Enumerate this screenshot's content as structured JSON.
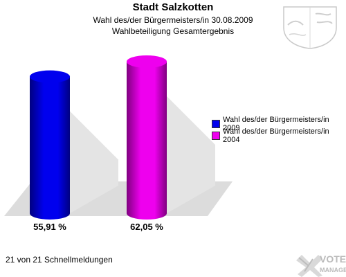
{
  "header": {
    "title": "Stadt Salzkotten",
    "subtitle_line1": "Wahl des/der Bürgermeisters/in 30.08.2009",
    "subtitle_line2": "Wahlbeteiligung Gesamtergebnis"
  },
  "chart_data": {
    "type": "bar",
    "categories": [
      "Wahl des/der Bürgermeisters/in 2009",
      "Wahl des/der Bürgermeisters/in  2004"
    ],
    "values": [
      55.91,
      62.05
    ],
    "value_labels": [
      "55,91 %",
      "62,05 %"
    ],
    "colors": [
      "#0000ee",
      "#ee00ee"
    ],
    "ylim": [
      0,
      70
    ],
    "grid": false,
    "legend_position": "right"
  },
  "legend": {
    "items": [
      {
        "label": "Wahl des/der Bürgermeisters/in 2009",
        "color": "#0000ee"
      },
      {
        "label": "Wahl des/der Bürgermeisters/in  2004",
        "color": "#ee00ee"
      }
    ]
  },
  "footer": {
    "text": "21 von 21 Schnellmeldungen"
  },
  "branding": {
    "logo_line1": "VOTE",
    "logo_line2": "MANAGER"
  }
}
